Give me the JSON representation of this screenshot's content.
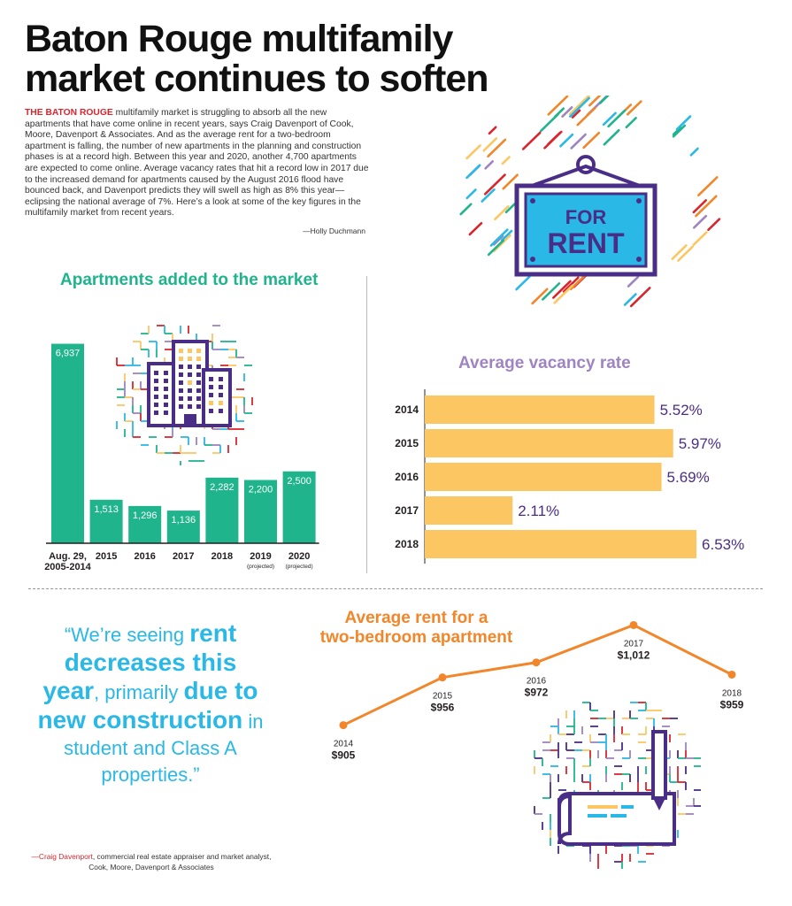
{
  "headline": {
    "line1": "Baton Rouge multifamily",
    "line2": "market continues to soften"
  },
  "intro": {
    "lead": "THE BATON ROUGE",
    "body": " multifamily market is struggling to absorb all the new apartments that have come online in recent years, says Craig Davenport of Cook, Moore, Davenport & Associates. And as the average rent for a two-bedroom apartment is falling, the number of new apartments in the planning and construction phases is at a record high. Between this year and 2020, another 4,700 apartments are expected to come online. Average vacancy rates that hit a record low in 2017 due to the increased demand for apartments caused by the August 2016 flood have bounced back, and Davenport predicts they will swell as high as 8% this year—eclipsing the national average of 7%. Here’s a look at some of the key figures in the multifamily market from recent years.",
    "byline": "—Holly Duchmann"
  },
  "sign": {
    "line1": "FOR",
    "line2": "RENT"
  },
  "colors": {
    "green": "#1fb48c",
    "purple": "#9e84c1",
    "dark_purple": "#4a2d86",
    "bar_yellow": "#fcc762",
    "orange": "#f2862a",
    "cyan": "#2ab8e6",
    "red": "#d8262f"
  },
  "chart_data": [
    {
      "type": "bar",
      "title": "Apartments added to the market",
      "categories": [
        "Aug. 29, 2005-2014",
        "2015",
        "2016",
        "2017",
        "2018",
        "2019",
        "2020"
      ],
      "category_lines": [
        [
          "Aug. 29,",
          "2005-2014"
        ],
        [
          "2015"
        ],
        [
          "2016"
        ],
        [
          "2017"
        ],
        [
          "2018"
        ],
        [
          "2019"
        ],
        [
          "2020"
        ]
      ],
      "category_notes": [
        "",
        "",
        "",
        "",
        "",
        "(projected)",
        "(projected)"
      ],
      "values": [
        6937,
        1513,
        1296,
        1136,
        2282,
        2200,
        2500
      ],
      "value_labels": [
        "6,937",
        "1,513",
        "1,296",
        "1,136",
        "2,282",
        "2,200",
        "2,500"
      ],
      "ylim": [
        0,
        7200
      ]
    },
    {
      "type": "bar",
      "orientation": "horizontal",
      "title": "Average vacancy rate",
      "categories": [
        "2014",
        "2015",
        "2016",
        "2017",
        "2018"
      ],
      "values": [
        5.52,
        5.97,
        5.69,
        2.11,
        6.53
      ],
      "value_labels": [
        "5.52%",
        "5.97%",
        "5.69%",
        "2.11%",
        "6.53%"
      ],
      "xlim": [
        0,
        7
      ]
    },
    {
      "type": "line",
      "title_lines": [
        "Average rent for a",
        "two-bedroom apartment"
      ],
      "x": [
        "2014",
        "2015",
        "2016",
        "2017",
        "2018"
      ],
      "values": [
        905,
        956,
        972,
        1012,
        959
      ],
      "value_labels": [
        "$905",
        "$956",
        "$972",
        "$1,012",
        "$959"
      ],
      "ylim": [
        880,
        1020
      ]
    }
  ],
  "quote": {
    "part1": "“We’re seeing ",
    "part2": "rent decreases this year",
    "part3": ", primarily ",
    "part4": "due to new construction",
    "part5": " in student and Class A properties.”"
  },
  "attribution": {
    "name": "—Craig Davenport",
    "rest": ", commercial real estate appraiser and market analyst, Cook, Moore, Davenport & Associates"
  }
}
